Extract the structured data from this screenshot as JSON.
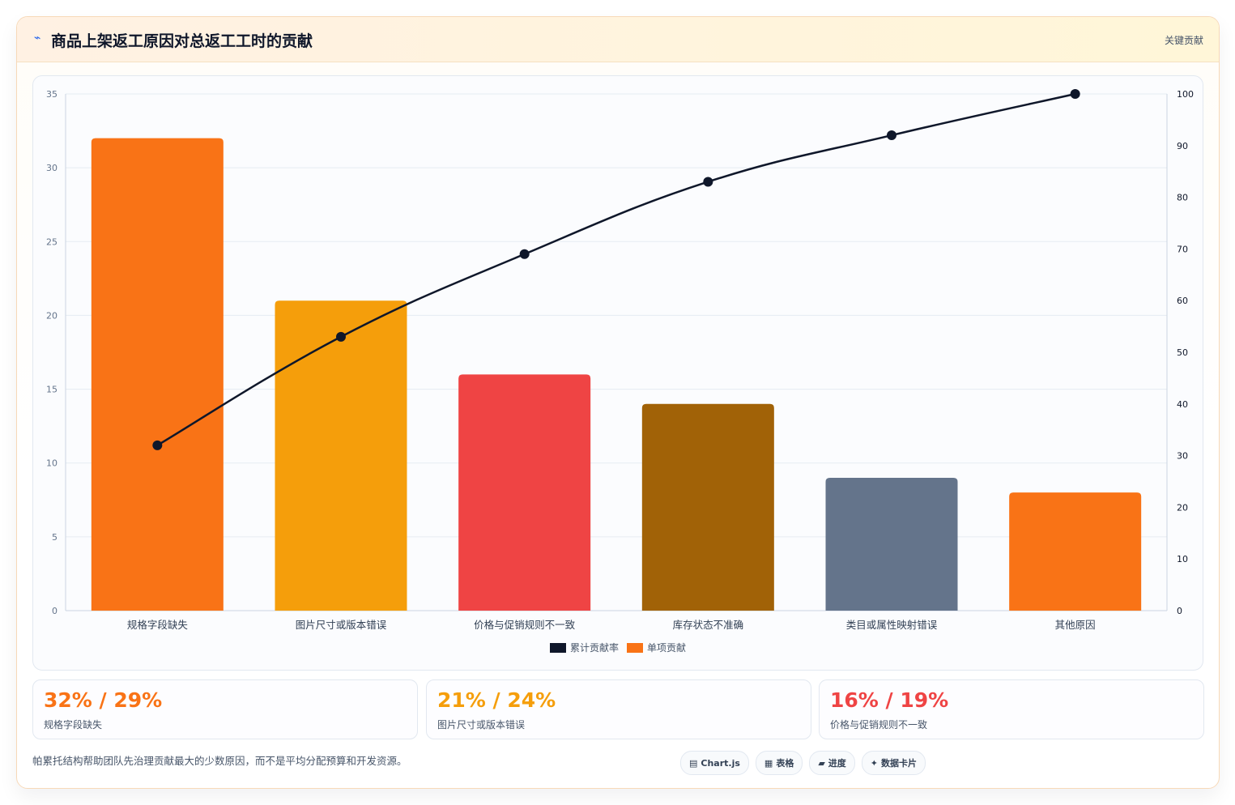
{
  "header": {
    "icon": "trend-icon",
    "icon_glyph": "⌁",
    "title": "商品上架返工原因对总返工工时的贡献",
    "badge": "关键贡献"
  },
  "chart_data": {
    "type": "bar",
    "categories": [
      "规格字段缺失",
      "图片尺寸或版本错误",
      "价格与促销规则不一致",
      "库存状态不准确",
      "类目或属性映射错误",
      "其他原因"
    ],
    "series": [
      {
        "name": "累计贡献率",
        "type": "line",
        "axis": "right",
        "color": "#0f172a",
        "values": [
          32,
          53,
          69,
          83,
          92,
          100
        ]
      },
      {
        "name": "单项贡献",
        "type": "bar",
        "axis": "left",
        "color": "#f97316",
        "values": [
          32,
          21,
          16,
          14,
          9,
          8
        ]
      }
    ],
    "bar_colors": [
      "#f97316",
      "#f59e0b",
      "#ef4444",
      "#a16207",
      "#64748b",
      "#f97316"
    ],
    "y_left": {
      "min": 0,
      "max": 35,
      "ticks": [
        0,
        5,
        10,
        15,
        20,
        25,
        30,
        35
      ]
    },
    "y_right": {
      "min": 0,
      "max": 100,
      "ticks": [
        0,
        10,
        20,
        30,
        40,
        50,
        60,
        70,
        80,
        90,
        100
      ]
    },
    "grid": true,
    "legend": "bottom"
  },
  "kpis": [
    {
      "value": "32% / 29%",
      "label": "规格字段缺失",
      "color": "#f97316"
    },
    {
      "value": "21% / 24%",
      "label": "图片尺寸或版本错误",
      "color": "#f59e0b"
    },
    {
      "value": "16% / 19%",
      "label": "价格与促销规则不一致",
      "color": "#ef4444"
    }
  ],
  "footnote": "帕累托结构帮助团队先治理贡献最大的少数原因，而不是平均分配预算和开发资源。",
  "tags": [
    {
      "glyph": "▤",
      "label": "Chart.js"
    },
    {
      "glyph": "▦",
      "label": "表格"
    },
    {
      "glyph": "▰",
      "label": "进度"
    },
    {
      "glyph": "✦",
      "label": "数据卡片"
    }
  ]
}
